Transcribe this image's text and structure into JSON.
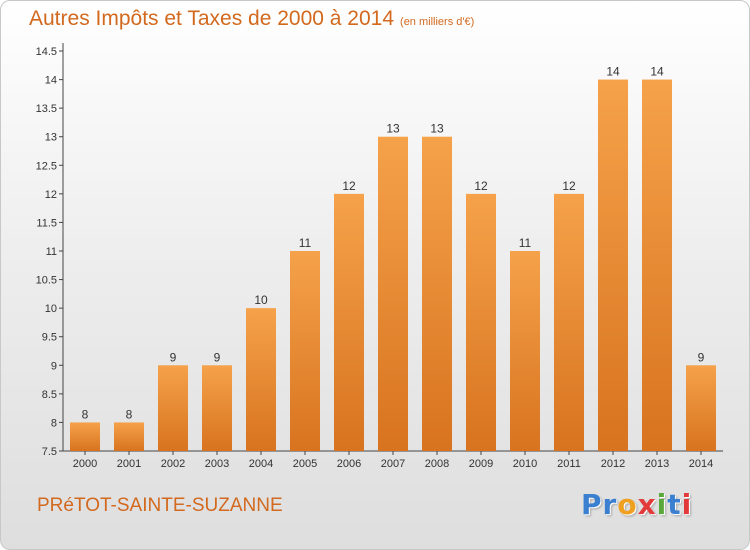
{
  "title": {
    "main": "Autres Impôts et Taxes de 2000 à 2014",
    "unit": "(en milliers d'€)"
  },
  "commune": "PRéTOT-SAINTE-SUZANNE",
  "brand": {
    "p1": "Pr",
    "p2": "o",
    "p3": "x",
    "p4": "i",
    "p5": "t",
    "p6": "i"
  },
  "colors": {
    "title": "#d2691e",
    "bar_light": "#f5a24a",
    "bar_dark": "#d8731f",
    "axis": "#444444"
  },
  "chart_data": {
    "type": "bar",
    "title": "Autres Impôts et Taxes de 2000 à 2014",
    "xlabel": "",
    "ylabel": "",
    "categories": [
      "2000",
      "2001",
      "2002",
      "2003",
      "2004",
      "2005",
      "2006",
      "2007",
      "2008",
      "2009",
      "2010",
      "2011",
      "2012",
      "2013",
      "2014"
    ],
    "values": [
      8,
      8,
      9,
      9,
      10,
      11,
      12,
      13,
      13,
      12,
      11,
      12,
      14,
      14,
      9
    ],
    "ylim": [
      7.5,
      14.5
    ],
    "yticks": [
      "7.5",
      "8",
      "8.5",
      "9",
      "9.5",
      "10",
      "10.5",
      "11",
      "11.5",
      "12",
      "12.5",
      "13",
      "13.5",
      "14",
      "14.5"
    ],
    "grid": false
  }
}
